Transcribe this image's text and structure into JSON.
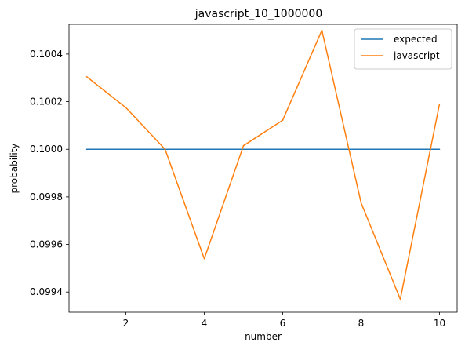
{
  "chart_data": {
    "type": "line",
    "title": "javascript_10_1000000",
    "xlabel": "number",
    "ylabel": "probability",
    "x": [
      1,
      2,
      3,
      4,
      5,
      6,
      7,
      8,
      9,
      10
    ],
    "xlim": [
      0.55,
      10.45
    ],
    "ylim": [
      0.099315,
      0.100525
    ],
    "xticks": [
      2,
      4,
      6,
      8,
      10
    ],
    "xtick_labels": [
      "2",
      "4",
      "6",
      "8",
      "10"
    ],
    "yticks": [
      0.0994,
      0.0996,
      0.0998,
      0.1,
      0.1002,
      0.1004
    ],
    "ytick_labels": [
      "0.0994",
      "0.0996",
      "0.0998",
      "0.1000",
      "0.1002",
      "0.1004"
    ],
    "grid": false,
    "legend_position": "top-right",
    "series": [
      {
        "name": "expected",
        "color": "#1f77b4",
        "values": [
          0.1,
          0.1,
          0.1,
          0.1,
          0.1,
          0.1,
          0.1,
          0.1,
          0.1,
          0.1
        ]
      },
      {
        "name": "javascript",
        "color": "#ff7f0e",
        "values": [
          0.100305,
          0.100175,
          0.1,
          0.09954,
          0.100015,
          0.100122,
          0.1005,
          0.099775,
          0.09937,
          0.10019
        ]
      }
    ]
  }
}
